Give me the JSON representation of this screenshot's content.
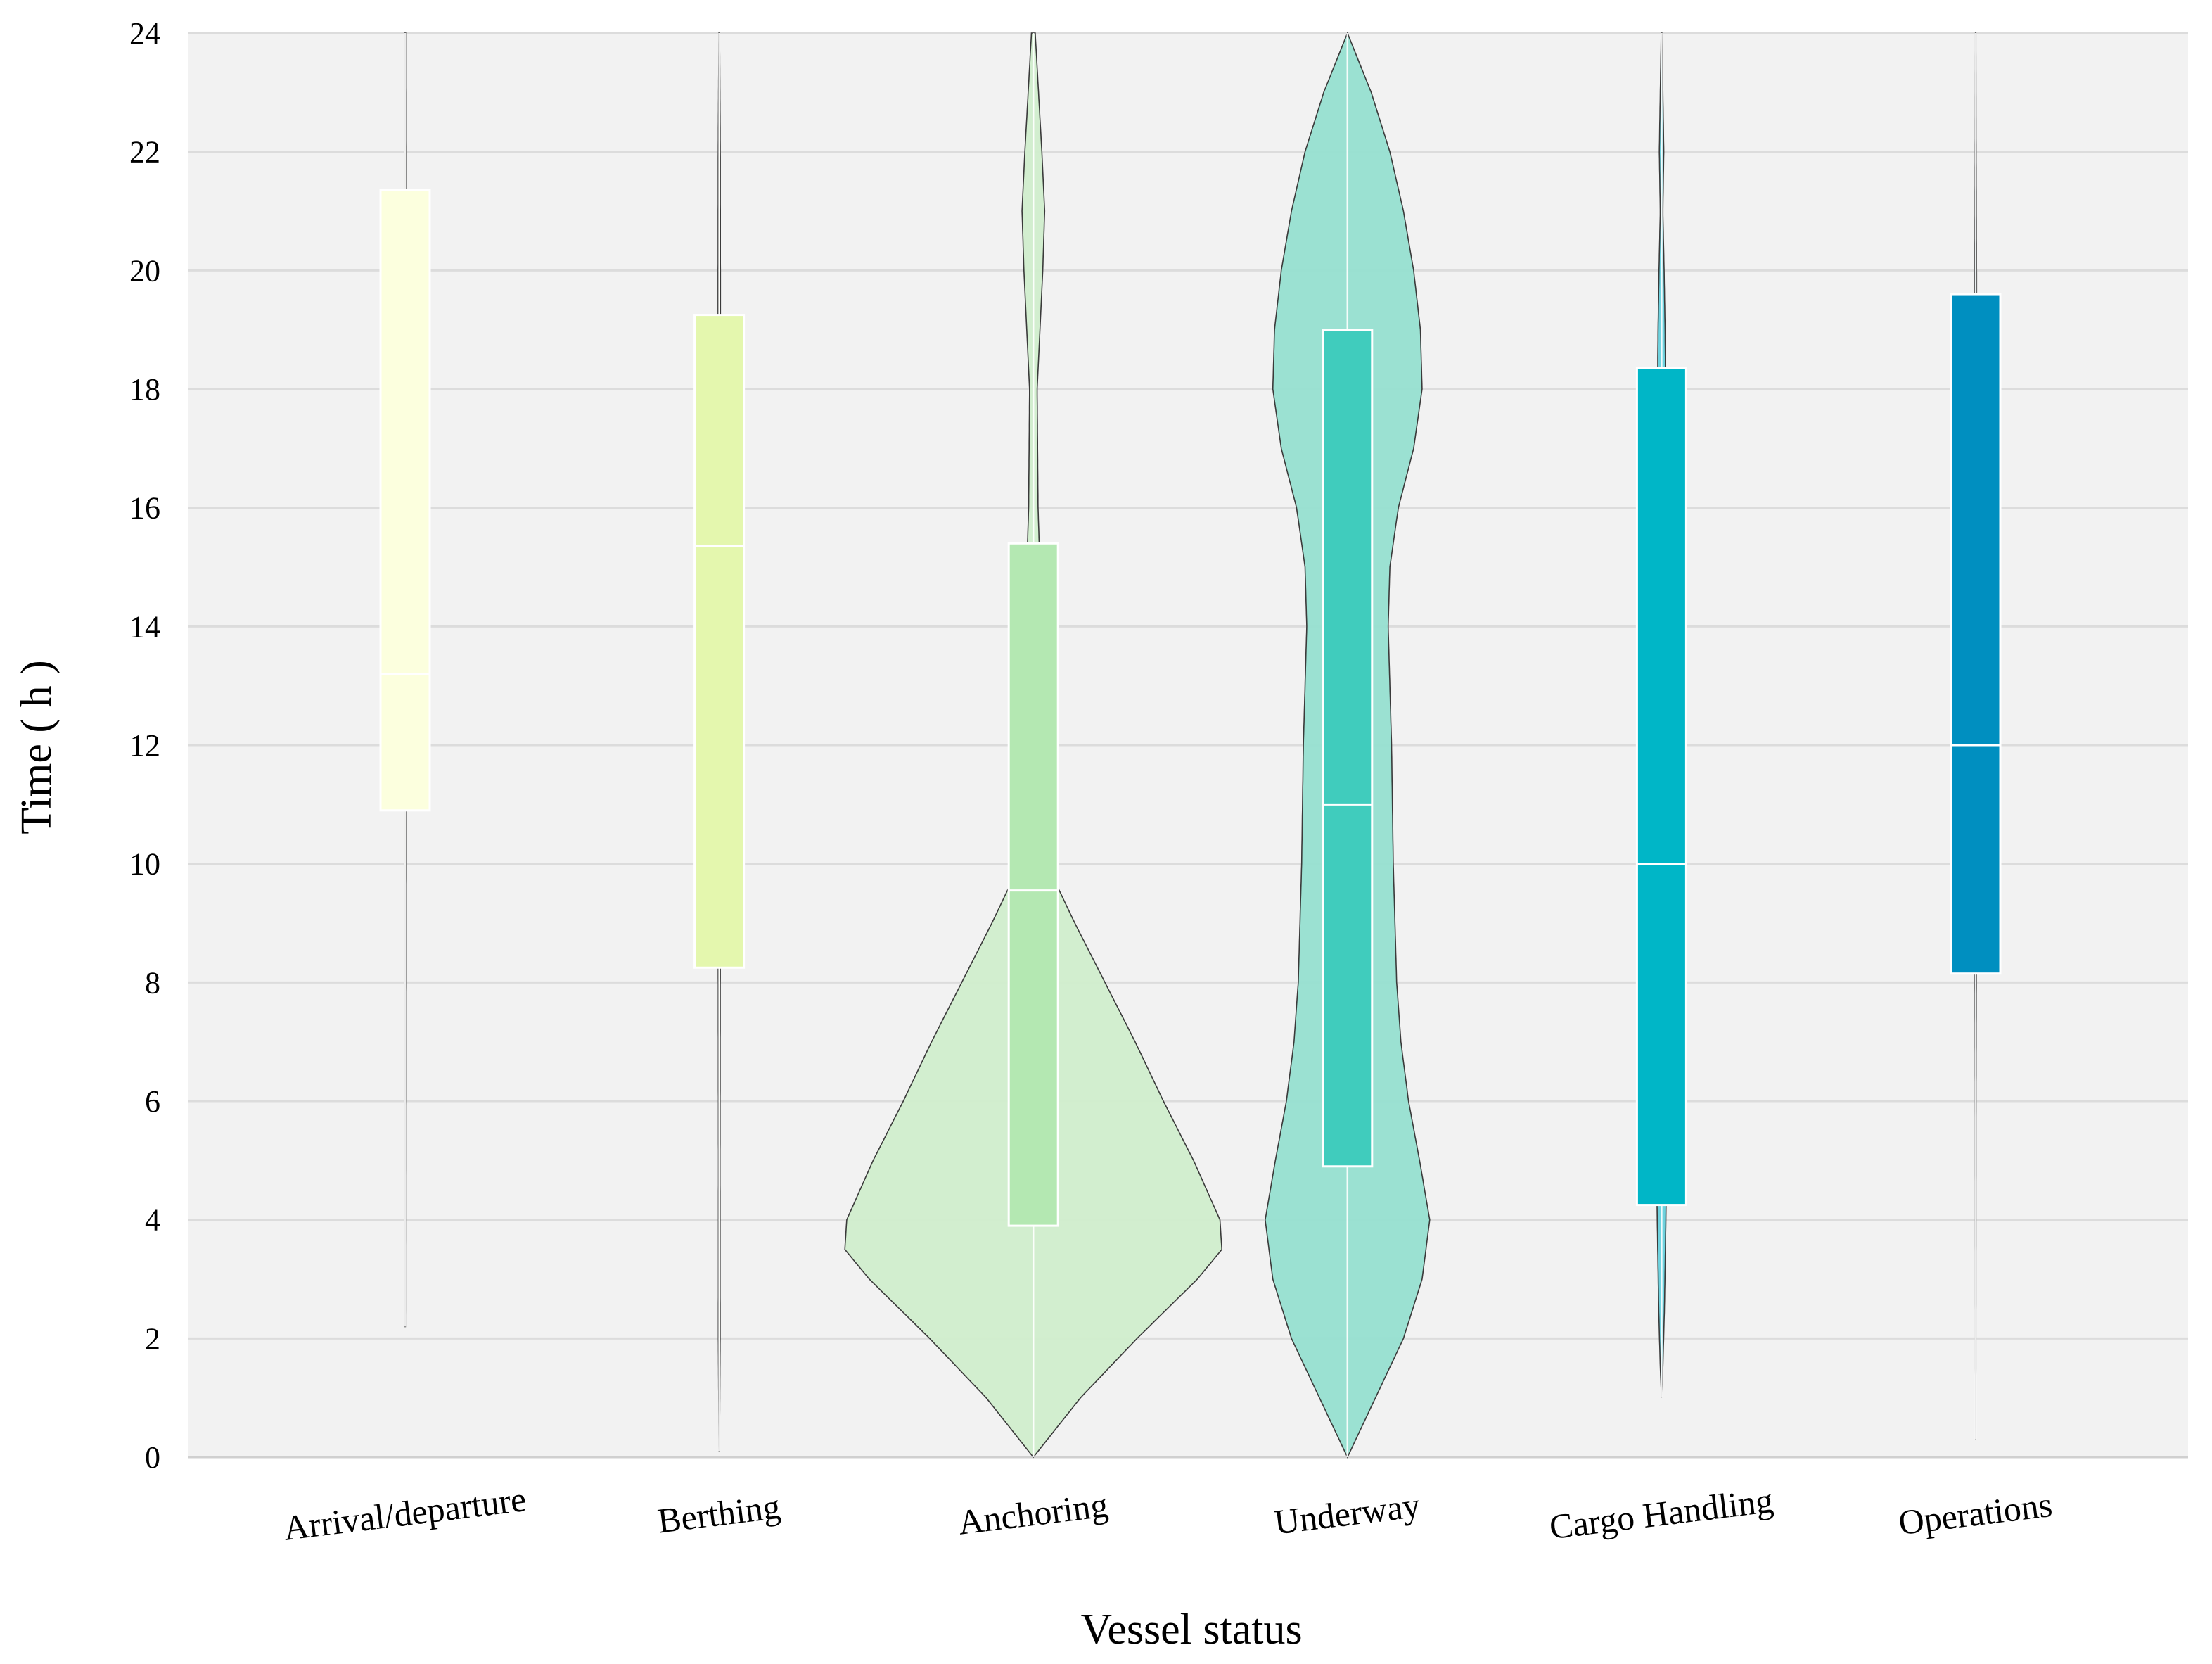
{
  "chart_data": {
    "type": "violin",
    "title": "",
    "xlabel": "Vessel status",
    "ylabel": "Time ( h )",
    "ylim": [
      0,
      24
    ],
    "yticks": [
      0,
      2,
      4,
      6,
      8,
      10,
      12,
      14,
      16,
      18,
      20,
      22,
      24
    ],
    "grid": true,
    "categories": [
      "Arrival/departure",
      "Berthing",
      "Anchoring",
      "Underway",
      "Cargo Handling",
      "Operations"
    ],
    "series": [
      {
        "category": "Arrival/departure",
        "color": "#fdffd9",
        "box_color": "#fcffde",
        "q1": 10.9,
        "median": 13.2,
        "q3": 21.35,
        "min": 2.2,
        "max": 24,
        "violin_max_halfwidth_fraction": 0.008,
        "density": [
          [
            2.2,
            0.2
          ],
          [
            6,
            0.35
          ],
          [
            10,
            0.45
          ],
          [
            13,
            0.5
          ],
          [
            16,
            0.6
          ],
          [
            20,
            0.55
          ],
          [
            24,
            0.35
          ]
        ]
      },
      {
        "category": "Berthing",
        "color": "#f4f9c9",
        "box_color": "#e4f7ae",
        "q1": 8.25,
        "median": 15.35,
        "q3": 19.25,
        "min": 0.1,
        "max": 24,
        "violin_max_halfwidth_fraction": 0.012,
        "density": [
          [
            0.1,
            0.1
          ],
          [
            2,
            0.4
          ],
          [
            5,
            0.35
          ],
          [
            8,
            0.45
          ],
          [
            11,
            0.5
          ],
          [
            15,
            0.6
          ],
          [
            19,
            0.55
          ],
          [
            22,
            0.45
          ],
          [
            24,
            0.15
          ]
        ]
      },
      {
        "category": "Anchoring",
        "color": "#d0edcc",
        "box_color": "#b4e8b2",
        "q1": 3.9,
        "median": 9.55,
        "q3": 15.4,
        "min": 0,
        "max": 24,
        "violin_max_halfwidth_fraction": 1.0,
        "density": [
          [
            0,
            0
          ],
          [
            1,
            0.25
          ],
          [
            2,
            0.55
          ],
          [
            3,
            0.87
          ],
          [
            3.5,
            1.0
          ],
          [
            4,
            0.99
          ],
          [
            5,
            0.85
          ],
          [
            6,
            0.69
          ],
          [
            7,
            0.54
          ],
          [
            8,
            0.38
          ],
          [
            9,
            0.22
          ],
          [
            10,
            0.07
          ],
          [
            10.3,
            0.025
          ],
          [
            11,
            0.018
          ],
          [
            13,
            0.025
          ],
          [
            15,
            0.035
          ],
          [
            16,
            0.025
          ],
          [
            18,
            0.02
          ],
          [
            20,
            0.05
          ],
          [
            21,
            0.06
          ],
          [
            22,
            0.045
          ],
          [
            24,
            0.01
          ]
        ]
      },
      {
        "category": "Underway",
        "color": "#96dfd0",
        "box_color": "#40ccbd",
        "q1": 4.9,
        "median": 11.0,
        "q3": 19.0,
        "min": 0,
        "max": 24,
        "violin_max_halfwidth_fraction": 0.45,
        "density": [
          [
            0,
            0
          ],
          [
            1,
            0.33
          ],
          [
            2,
            0.66
          ],
          [
            3,
            0.88
          ],
          [
            4,
            0.97
          ],
          [
            5,
            0.85
          ],
          [
            6,
            0.72
          ],
          [
            7,
            0.63
          ],
          [
            8,
            0.58
          ],
          [
            9,
            0.56
          ],
          [
            10,
            0.54
          ],
          [
            11,
            0.53
          ],
          [
            12,
            0.52
          ],
          [
            13,
            0.5
          ],
          [
            14,
            0.48
          ],
          [
            15,
            0.5
          ],
          [
            16,
            0.6
          ],
          [
            17,
            0.78
          ],
          [
            18,
            0.88
          ],
          [
            19,
            0.86
          ],
          [
            20,
            0.78
          ],
          [
            21,
            0.66
          ],
          [
            22,
            0.5
          ],
          [
            23,
            0.28
          ],
          [
            24,
            0
          ]
        ]
      },
      {
        "category": "Cargo Handling",
        "color": "#66d0dc",
        "box_color": "#00b6c7",
        "q1": 4.25,
        "median": 10.0,
        "q3": 18.35,
        "min": 1.0,
        "max": 24,
        "violin_max_halfwidth_fraction": 0.034,
        "density": [
          [
            1,
            0
          ],
          [
            1.5,
            0.2
          ],
          [
            2.5,
            0.45
          ],
          [
            3.5,
            0.6
          ],
          [
            4.2,
            0.7
          ],
          [
            6,
            0.65
          ],
          [
            10,
            0.7
          ],
          [
            14,
            0.65
          ],
          [
            17,
            0.55
          ],
          [
            18.4,
            0.6
          ],
          [
            19,
            0.55
          ],
          [
            20,
            0.4
          ],
          [
            21,
            0.2
          ],
          [
            22,
            0.35
          ],
          [
            23,
            0.2
          ],
          [
            24,
            0.05
          ]
        ]
      },
      {
        "category": "Operations",
        "color": "#4aa8c8",
        "box_color": "#008fc0",
        "q1": 8.15,
        "median": 12.0,
        "q3": 19.6,
        "min": 0.3,
        "max": 24,
        "violin_max_halfwidth_fraction": 0.01,
        "density": [
          [
            0.3,
            0.05
          ],
          [
            3,
            0.15
          ],
          [
            6,
            0.25
          ],
          [
            8,
            0.4
          ],
          [
            12,
            0.45
          ],
          [
            16,
            0.5
          ],
          [
            19.6,
            0.5
          ],
          [
            22,
            0.3
          ],
          [
            24,
            0.1
          ]
        ]
      }
    ]
  }
}
